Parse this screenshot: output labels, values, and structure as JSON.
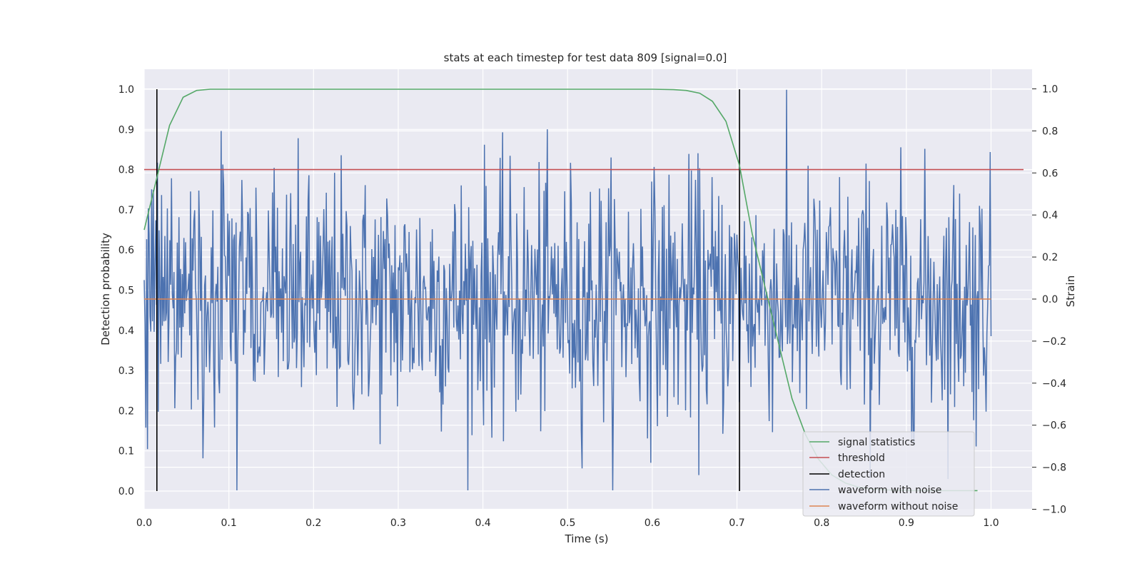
{
  "chart_data": {
    "type": "line",
    "title": "stats at each timestep for test data 809 [signal=0.0]",
    "xlabel": "Time (s)",
    "ylabel": "Detection probability",
    "y2label": "Strain",
    "xlim": [
      0.0,
      1.05
    ],
    "ylim": [
      -0.045,
      1.045
    ],
    "y2lim": [
      -1.0,
      1.0
    ],
    "xticks": [
      "0.0",
      "0.1",
      "0.2",
      "0.3",
      "0.4",
      "0.5",
      "0.6",
      "0.7",
      "0.8",
      "0.9",
      "1.0"
    ],
    "yticks": [
      "0.0",
      "0.1",
      "0.2",
      "0.3",
      "0.4",
      "0.5",
      "0.6",
      "0.7",
      "0.8",
      "0.9",
      "1.0"
    ],
    "y2ticks": [
      "−1.0",
      "−0.8",
      "−0.6",
      "−0.4",
      "−0.2",
      "0.0",
      "0.2",
      "0.4",
      "0.6",
      "0.8",
      "1.0"
    ],
    "grid": true,
    "legend_position": "bottom-right",
    "colors": {
      "signal": "#55a868",
      "threshold": "#c44e52",
      "detection": "#000000",
      "noisy": "#4c72b0",
      "clean": "#dd8452",
      "plot_bg": "#eaeaf2",
      "grid": "#ffffff"
    },
    "series": [
      {
        "name": "signal statistics",
        "axis": "left",
        "x": [
          0.0,
          0.015,
          0.03,
          0.046,
          0.062,
          0.078,
          0.1,
          0.2,
          0.3,
          0.4,
          0.5,
          0.6,
          0.625,
          0.64,
          0.656,
          0.671,
          0.687,
          0.703,
          0.718,
          0.734,
          0.75,
          0.765,
          0.781,
          0.796,
          0.812,
          0.828,
          0.843,
          0.859,
          0.875,
          0.89,
          0.906,
          0.921,
          0.937,
          0.953,
          0.968,
          0.984
        ],
        "y": [
          0.65,
          0.78,
          0.91,
          0.98,
          0.997,
          1.0,
          1.0,
          1.0,
          1.0,
          1.0,
          1.0,
          1.0,
          0.999,
          0.997,
          0.99,
          0.97,
          0.92,
          0.81,
          0.64,
          0.5,
          0.36,
          0.23,
          0.14,
          0.08,
          0.04,
          0.02,
          0.01,
          0.005,
          0.003,
          0.002,
          0.001,
          0.001,
          0.001,
          0.001,
          0.001,
          0.001
        ]
      },
      {
        "name": "threshold",
        "axis": "left",
        "x": [
          0.0,
          1.05
        ],
        "y": [
          0.8,
          0.8
        ]
      },
      {
        "name": "detection",
        "axis": "left",
        "vlines": [
          0.015,
          0.703
        ],
        "ymin": 0.0,
        "ymax": 1.0
      },
      {
        "name": "waveform with noise",
        "axis": "right",
        "x_start": 0.0,
        "x_end": 1.0,
        "n_points": 1024,
        "approx_range": [
          -0.91,
          1.0
        ]
      },
      {
        "name": "waveform without noise",
        "axis": "right",
        "x": [
          0.0,
          1.0
        ],
        "y": [
          0.0,
          0.0
        ]
      }
    ]
  }
}
